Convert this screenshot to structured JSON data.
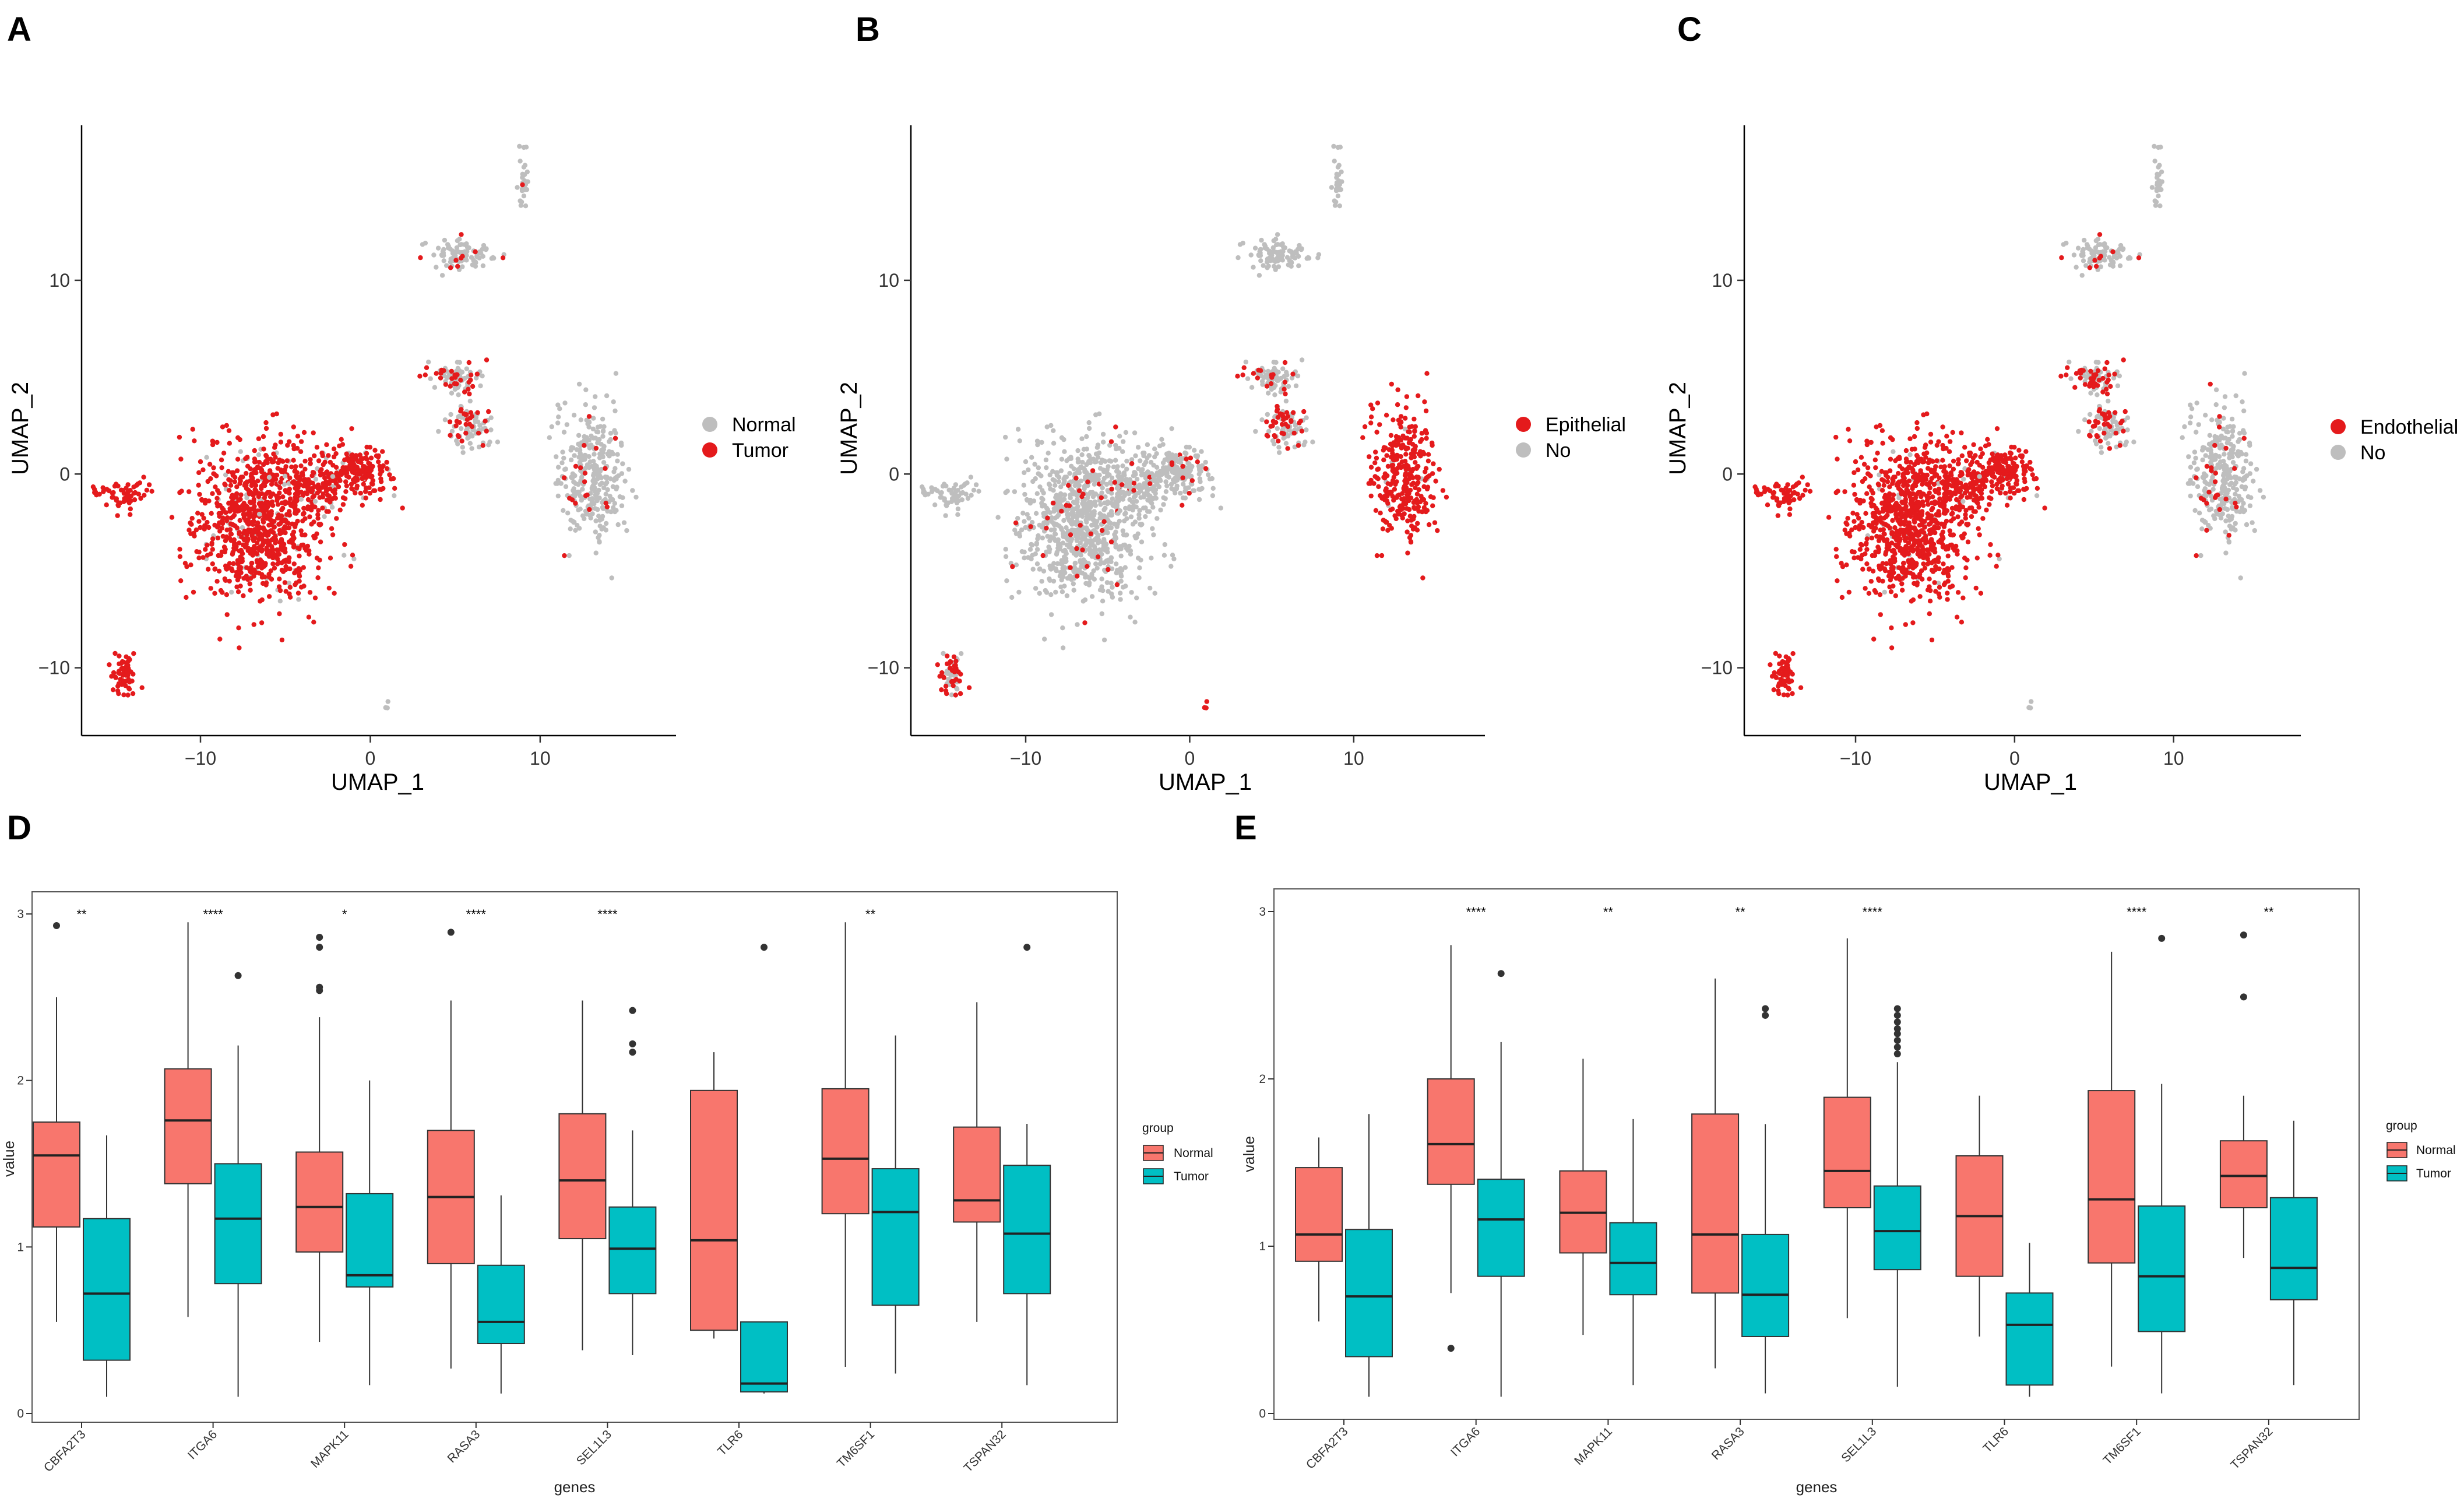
{
  "figure": {
    "panel_labels": [
      "A",
      "B",
      "C",
      "D",
      "E"
    ]
  },
  "colors": {
    "highlight": "#e41a1c",
    "grey": "#bebebe",
    "normal": "#f8766d",
    "tumor": "#00bfc4",
    "outlier": "#333333"
  },
  "chart_data": [
    {
      "panel": "A",
      "type": "scatter",
      "title": "",
      "xlabel": "UMAP_1",
      "ylabel": "UMAP_2",
      "xlim": [
        -17,
        18
      ],
      "ylim": [
        -13.5,
        18
      ],
      "xticks": [
        -10,
        0,
        10
      ],
      "yticks": [
        -10,
        0,
        10
      ],
      "legend": {
        "position": "right",
        "items": [
          {
            "label": "Normal",
            "color": "#bebebe"
          },
          {
            "label": "Tumor",
            "color": "#e41a1c"
          }
        ]
      },
      "clusters": [
        {
          "name": "large-left",
          "x": -6.5,
          "y": -2.5,
          "sx": 2.0,
          "sy": 2.0,
          "n": 900,
          "highlight_frac": 0.92
        },
        {
          "name": "left-arm",
          "x": -2.5,
          "y": -0.3,
          "sx": 1.5,
          "sy": 0.7,
          "n": 200,
          "highlight_frac": 0.85
        },
        {
          "name": "right-nub",
          "x": -0.5,
          "y": 0.3,
          "sx": 0.7,
          "sy": 0.6,
          "n": 120,
          "highlight_frac": 0.9
        },
        {
          "name": "far-left-strip",
          "x": -14.5,
          "y": -1.0,
          "sx": 0.8,
          "sy": 0.4,
          "n": 60,
          "highlight_frac": 1.0
        },
        {
          "name": "bottom-left",
          "x": -14.5,
          "y": -10.3,
          "sx": 0.4,
          "sy": 0.5,
          "n": 60,
          "highlight_frac": 1.0
        },
        {
          "name": "mid-upper",
          "x": 5.3,
          "y": 5.0,
          "sx": 0.8,
          "sy": 0.4,
          "n": 90,
          "highlight_frac": 0.3
        },
        {
          "name": "mid-lower",
          "x": 6.0,
          "y": 2.3,
          "sx": 0.8,
          "sy": 0.5,
          "n": 90,
          "highlight_frac": 0.3
        },
        {
          "name": "top-pair",
          "x": 5.3,
          "y": 11.3,
          "sx": 1.0,
          "sy": 0.4,
          "n": 90,
          "highlight_frac": 0.08
        },
        {
          "name": "top-spike",
          "x": 9.0,
          "y": 15.3,
          "sx": 0.15,
          "sy": 0.8,
          "n": 30,
          "highlight_frac": 0.05
        },
        {
          "name": "right-cluster",
          "x": 13.0,
          "y": 0.0,
          "sx": 1.0,
          "sy": 1.8,
          "n": 320,
          "highlight_frac": 0.06
        },
        {
          "name": "tiny-bottom",
          "x": 1.0,
          "y": -12.0,
          "sx": 0.1,
          "sy": 0.1,
          "n": 3,
          "highlight_frac": 0.0
        }
      ]
    },
    {
      "panel": "B",
      "type": "scatter",
      "title": "",
      "xlabel": "UMAP_1",
      "ylabel": "UMAP_2",
      "xlim": [
        -17,
        18
      ],
      "ylim": [
        -13.5,
        18
      ],
      "xticks": [
        -10,
        0,
        10
      ],
      "yticks": [
        -10,
        0,
        10
      ],
      "legend": {
        "position": "right",
        "items": [
          {
            "label": "Epithelial",
            "color": "#e41a1c"
          },
          {
            "label": "No",
            "color": "#bebebe"
          }
        ]
      },
      "clusters": [
        {
          "name": "large-left",
          "x": -6.5,
          "y": -2.5,
          "sx": 2.0,
          "sy": 2.0,
          "n": 900,
          "highlight_frac": 0.04
        },
        {
          "name": "left-arm",
          "x": -2.5,
          "y": -0.3,
          "sx": 1.5,
          "sy": 0.7,
          "n": 200,
          "highlight_frac": 0.05
        },
        {
          "name": "right-nub",
          "x": -0.5,
          "y": 0.3,
          "sx": 0.7,
          "sy": 0.6,
          "n": 120,
          "highlight_frac": 0.05
        },
        {
          "name": "far-left-strip",
          "x": -14.5,
          "y": -1.0,
          "sx": 0.8,
          "sy": 0.4,
          "n": 60,
          "highlight_frac": 0.0
        },
        {
          "name": "bottom-left",
          "x": -14.5,
          "y": -10.3,
          "sx": 0.4,
          "sy": 0.5,
          "n": 60,
          "highlight_frac": 0.6
        },
        {
          "name": "mid-upper",
          "x": 5.3,
          "y": 5.0,
          "sx": 0.8,
          "sy": 0.4,
          "n": 90,
          "highlight_frac": 0.15
        },
        {
          "name": "mid-lower",
          "x": 6.0,
          "y": 2.3,
          "sx": 0.8,
          "sy": 0.5,
          "n": 90,
          "highlight_frac": 0.4
        },
        {
          "name": "top-pair",
          "x": 5.3,
          "y": 11.3,
          "sx": 1.0,
          "sy": 0.4,
          "n": 90,
          "highlight_frac": 0.0
        },
        {
          "name": "top-spike",
          "x": 9.0,
          "y": 15.3,
          "sx": 0.15,
          "sy": 0.8,
          "n": 30,
          "highlight_frac": 0.0
        },
        {
          "name": "right-cluster",
          "x": 13.0,
          "y": 0.0,
          "sx": 1.0,
          "sy": 1.8,
          "n": 320,
          "highlight_frac": 0.97
        },
        {
          "name": "tiny-bottom",
          "x": 1.0,
          "y": -12.0,
          "sx": 0.1,
          "sy": 0.1,
          "n": 3,
          "highlight_frac": 1.0
        }
      ]
    },
    {
      "panel": "C",
      "type": "scatter",
      "title": "",
      "xlabel": "UMAP_1",
      "ylabel": "UMAP_2",
      "xlim": [
        -17,
        18
      ],
      "ylim": [
        -13.5,
        18
      ],
      "xticks": [
        -10,
        0,
        10
      ],
      "yticks": [
        -10,
        0,
        10
      ],
      "legend": {
        "position": "right",
        "items": [
          {
            "label": "Endothelial",
            "color": "#e41a1c"
          },
          {
            "label": "No",
            "color": "#bebebe"
          }
        ]
      },
      "clusters": [
        {
          "name": "large-left",
          "x": -6.5,
          "y": -2.5,
          "sx": 2.0,
          "sy": 2.0,
          "n": 900,
          "highlight_frac": 0.96
        },
        {
          "name": "left-arm",
          "x": -2.5,
          "y": -0.3,
          "sx": 1.5,
          "sy": 0.7,
          "n": 200,
          "highlight_frac": 0.95
        },
        {
          "name": "right-nub",
          "x": -0.5,
          "y": 0.3,
          "sx": 0.7,
          "sy": 0.6,
          "n": 120,
          "highlight_frac": 0.95
        },
        {
          "name": "far-left-strip",
          "x": -14.5,
          "y": -1.0,
          "sx": 0.8,
          "sy": 0.4,
          "n": 60,
          "highlight_frac": 1.0
        },
        {
          "name": "bottom-left",
          "x": -14.5,
          "y": -10.3,
          "sx": 0.4,
          "sy": 0.5,
          "n": 60,
          "highlight_frac": 1.0
        },
        {
          "name": "mid-upper",
          "x": 5.3,
          "y": 5.0,
          "sx": 0.8,
          "sy": 0.4,
          "n": 90,
          "highlight_frac": 0.45
        },
        {
          "name": "mid-lower",
          "x": 6.0,
          "y": 2.3,
          "sx": 0.8,
          "sy": 0.5,
          "n": 90,
          "highlight_frac": 0.35
        },
        {
          "name": "top-pair",
          "x": 5.3,
          "y": 11.3,
          "sx": 1.0,
          "sy": 0.4,
          "n": 90,
          "highlight_frac": 0.08
        },
        {
          "name": "top-spike",
          "x": 9.0,
          "y": 15.3,
          "sx": 0.15,
          "sy": 0.8,
          "n": 30,
          "highlight_frac": 0.0
        },
        {
          "name": "right-cluster",
          "x": 13.0,
          "y": 0.0,
          "sx": 1.0,
          "sy": 1.8,
          "n": 320,
          "highlight_frac": 0.08
        },
        {
          "name": "tiny-bottom",
          "x": 1.0,
          "y": -12.0,
          "sx": 0.1,
          "sy": 0.1,
          "n": 3,
          "highlight_frac": 0.0
        }
      ]
    },
    {
      "panel": "D",
      "type": "box",
      "title": "",
      "xlabel": "genes",
      "ylabel": "value",
      "ylim": [
        -0.05,
        3.12
      ],
      "yticks": [
        0,
        1,
        2,
        3
      ],
      "legend": {
        "position": "right",
        "title": "group",
        "items": [
          {
            "label": "Normal",
            "color": "#f8766d"
          },
          {
            "label": "Tumor",
            "color": "#00bfc4"
          }
        ]
      },
      "categories": [
        "CBFA2T3",
        "ITGA6",
        "MAPK11",
        "RASA3",
        "SEL1L3",
        "TLR6",
        "TM6SF1",
        "TSPAN32"
      ],
      "significance": [
        "**",
        "****",
        "*",
        "****",
        "****",
        "",
        "**",
        ""
      ],
      "series": [
        {
          "name": "Normal",
          "stats": [
            {
              "min": 0.55,
              "q1": 1.12,
              "median": 1.55,
              "q3": 1.75,
              "max": 2.5,
              "outliers": [
                2.93
              ]
            },
            {
              "min": 0.58,
              "q1": 1.38,
              "median": 1.76,
              "q3": 2.07,
              "max": 2.95,
              "outliers": []
            },
            {
              "min": 0.43,
              "q1": 0.97,
              "median": 1.24,
              "q3": 1.57,
              "max": 2.38,
              "outliers": [
                2.54,
                2.56,
                2.8,
                2.86
              ]
            },
            {
              "min": 0.27,
              "q1": 0.9,
              "median": 1.3,
              "q3": 1.7,
              "max": 2.48,
              "outliers": [
                2.89
              ]
            },
            {
              "min": 0.38,
              "q1": 1.05,
              "median": 1.4,
              "q3": 1.8,
              "max": 2.48,
              "outliers": []
            },
            {
              "min": 0.45,
              "q1": 0.5,
              "median": 1.04,
              "q3": 1.94,
              "max": 2.17,
              "outliers": []
            },
            {
              "min": 0.28,
              "q1": 1.2,
              "median": 1.53,
              "q3": 1.95,
              "max": 2.95,
              "outliers": []
            },
            {
              "min": 0.55,
              "q1": 1.15,
              "median": 1.28,
              "q3": 1.72,
              "max": 2.47,
              "outliers": []
            }
          ]
        },
        {
          "name": "Tumor",
          "stats": [
            {
              "min": 0.1,
              "q1": 0.32,
              "median": 0.72,
              "q3": 1.17,
              "max": 1.67,
              "outliers": []
            },
            {
              "min": 0.1,
              "q1": 0.78,
              "median": 1.17,
              "q3": 1.5,
              "max": 2.21,
              "outliers": [
                2.63
              ]
            },
            {
              "min": 0.17,
              "q1": 0.76,
              "median": 0.83,
              "q3": 1.32,
              "max": 2.0,
              "outliers": []
            },
            {
              "min": 0.12,
              "q1": 0.42,
              "median": 0.55,
              "q3": 0.89,
              "max": 1.31,
              "outliers": []
            },
            {
              "min": 0.35,
              "q1": 0.72,
              "median": 0.99,
              "q3": 1.24,
              "max": 1.7,
              "outliers": [
                2.17,
                2.22,
                2.42
              ]
            },
            {
              "min": 0.12,
              "q1": 0.13,
              "median": 0.18,
              "q3": 0.55,
              "max": 0.55,
              "outliers": [
                2.8
              ]
            },
            {
              "min": 0.24,
              "q1": 0.65,
              "median": 1.21,
              "q3": 1.47,
              "max": 2.27,
              "outliers": []
            },
            {
              "min": 0.17,
              "q1": 0.72,
              "median": 1.08,
              "q3": 1.49,
              "max": 1.74,
              "outliers": [
                2.8
              ]
            }
          ]
        }
      ]
    },
    {
      "panel": "E",
      "type": "box",
      "title": "",
      "xlabel": "genes",
      "ylabel": "value",
      "ylim": [
        -0.05,
        3.12
      ],
      "yticks": [
        0,
        1,
        2,
        3
      ],
      "legend": {
        "position": "right",
        "title": "group",
        "items": [
          {
            "label": "Normal",
            "color": "#f8766d"
          },
          {
            "label": "Tumor",
            "color": "#00bfc4"
          }
        ]
      },
      "categories": [
        "CBFA2T3",
        "ITGA6",
        "MAPK11",
        "RASA3",
        "SEL1L3",
        "TLR6",
        "TM6SF1",
        "TSPAN32"
      ],
      "significance": [
        "",
        "****",
        "**",
        "**",
        "****",
        "",
        "****",
        "**"
      ],
      "series": [
        {
          "name": "Normal",
          "stats": [
            {
              "min": 0.55,
              "q1": 0.91,
              "median": 1.07,
              "q3": 1.47,
              "max": 1.65,
              "outliers": []
            },
            {
              "min": 0.72,
              "q1": 1.37,
              "median": 1.61,
              "q3": 2.0,
              "max": 2.8,
              "outliers": [
                0.39
              ]
            },
            {
              "min": 0.47,
              "q1": 0.96,
              "median": 1.2,
              "q3": 1.45,
              "max": 2.12,
              "outliers": []
            },
            {
              "min": 0.27,
              "q1": 0.72,
              "median": 1.07,
              "q3": 1.79,
              "max": 2.6,
              "outliers": []
            },
            {
              "min": 0.57,
              "q1": 1.23,
              "median": 1.45,
              "q3": 1.89,
              "max": 2.84,
              "outliers": []
            },
            {
              "min": 0.46,
              "q1": 0.82,
              "median": 1.18,
              "q3": 1.54,
              "max": 1.9,
              "outliers": []
            },
            {
              "min": 0.28,
              "q1": 0.9,
              "median": 1.28,
              "q3": 1.93,
              "max": 2.76,
              "outliers": []
            },
            {
              "min": 0.93,
              "q1": 1.23,
              "median": 1.42,
              "q3": 1.63,
              "max": 1.9,
              "outliers": [
                2.49,
                2.86
              ]
            }
          ]
        },
        {
          "name": "Tumor",
          "stats": [
            {
              "min": 0.1,
              "q1": 0.34,
              "median": 0.7,
              "q3": 1.1,
              "max": 1.79,
              "outliers": []
            },
            {
              "min": 0.1,
              "q1": 0.82,
              "median": 1.16,
              "q3": 1.4,
              "max": 2.22,
              "outliers": [
                2.63
              ]
            },
            {
              "min": 0.17,
              "q1": 0.71,
              "median": 0.9,
              "q3": 1.14,
              "max": 1.76,
              "outliers": []
            },
            {
              "min": 0.12,
              "q1": 0.46,
              "median": 0.71,
              "q3": 1.07,
              "max": 1.73,
              "outliers": [
                2.38,
                2.42
              ]
            },
            {
              "min": 0.16,
              "q1": 0.86,
              "median": 1.09,
              "q3": 1.36,
              "max": 2.1,
              "outliers": [
                2.15,
                2.19,
                2.23,
                2.27,
                2.3,
                2.34,
                2.38,
                2.42
              ]
            },
            {
              "min": 0.1,
              "q1": 0.17,
              "median": 0.53,
              "q3": 0.72,
              "max": 1.02,
              "outliers": []
            },
            {
              "min": 0.12,
              "q1": 0.49,
              "median": 0.82,
              "q3": 1.24,
              "max": 1.97,
              "outliers": [
                2.84
              ]
            },
            {
              "min": 0.17,
              "q1": 0.68,
              "median": 0.87,
              "q3": 1.29,
              "max": 1.75,
              "outliers": []
            }
          ]
        }
      ]
    }
  ]
}
